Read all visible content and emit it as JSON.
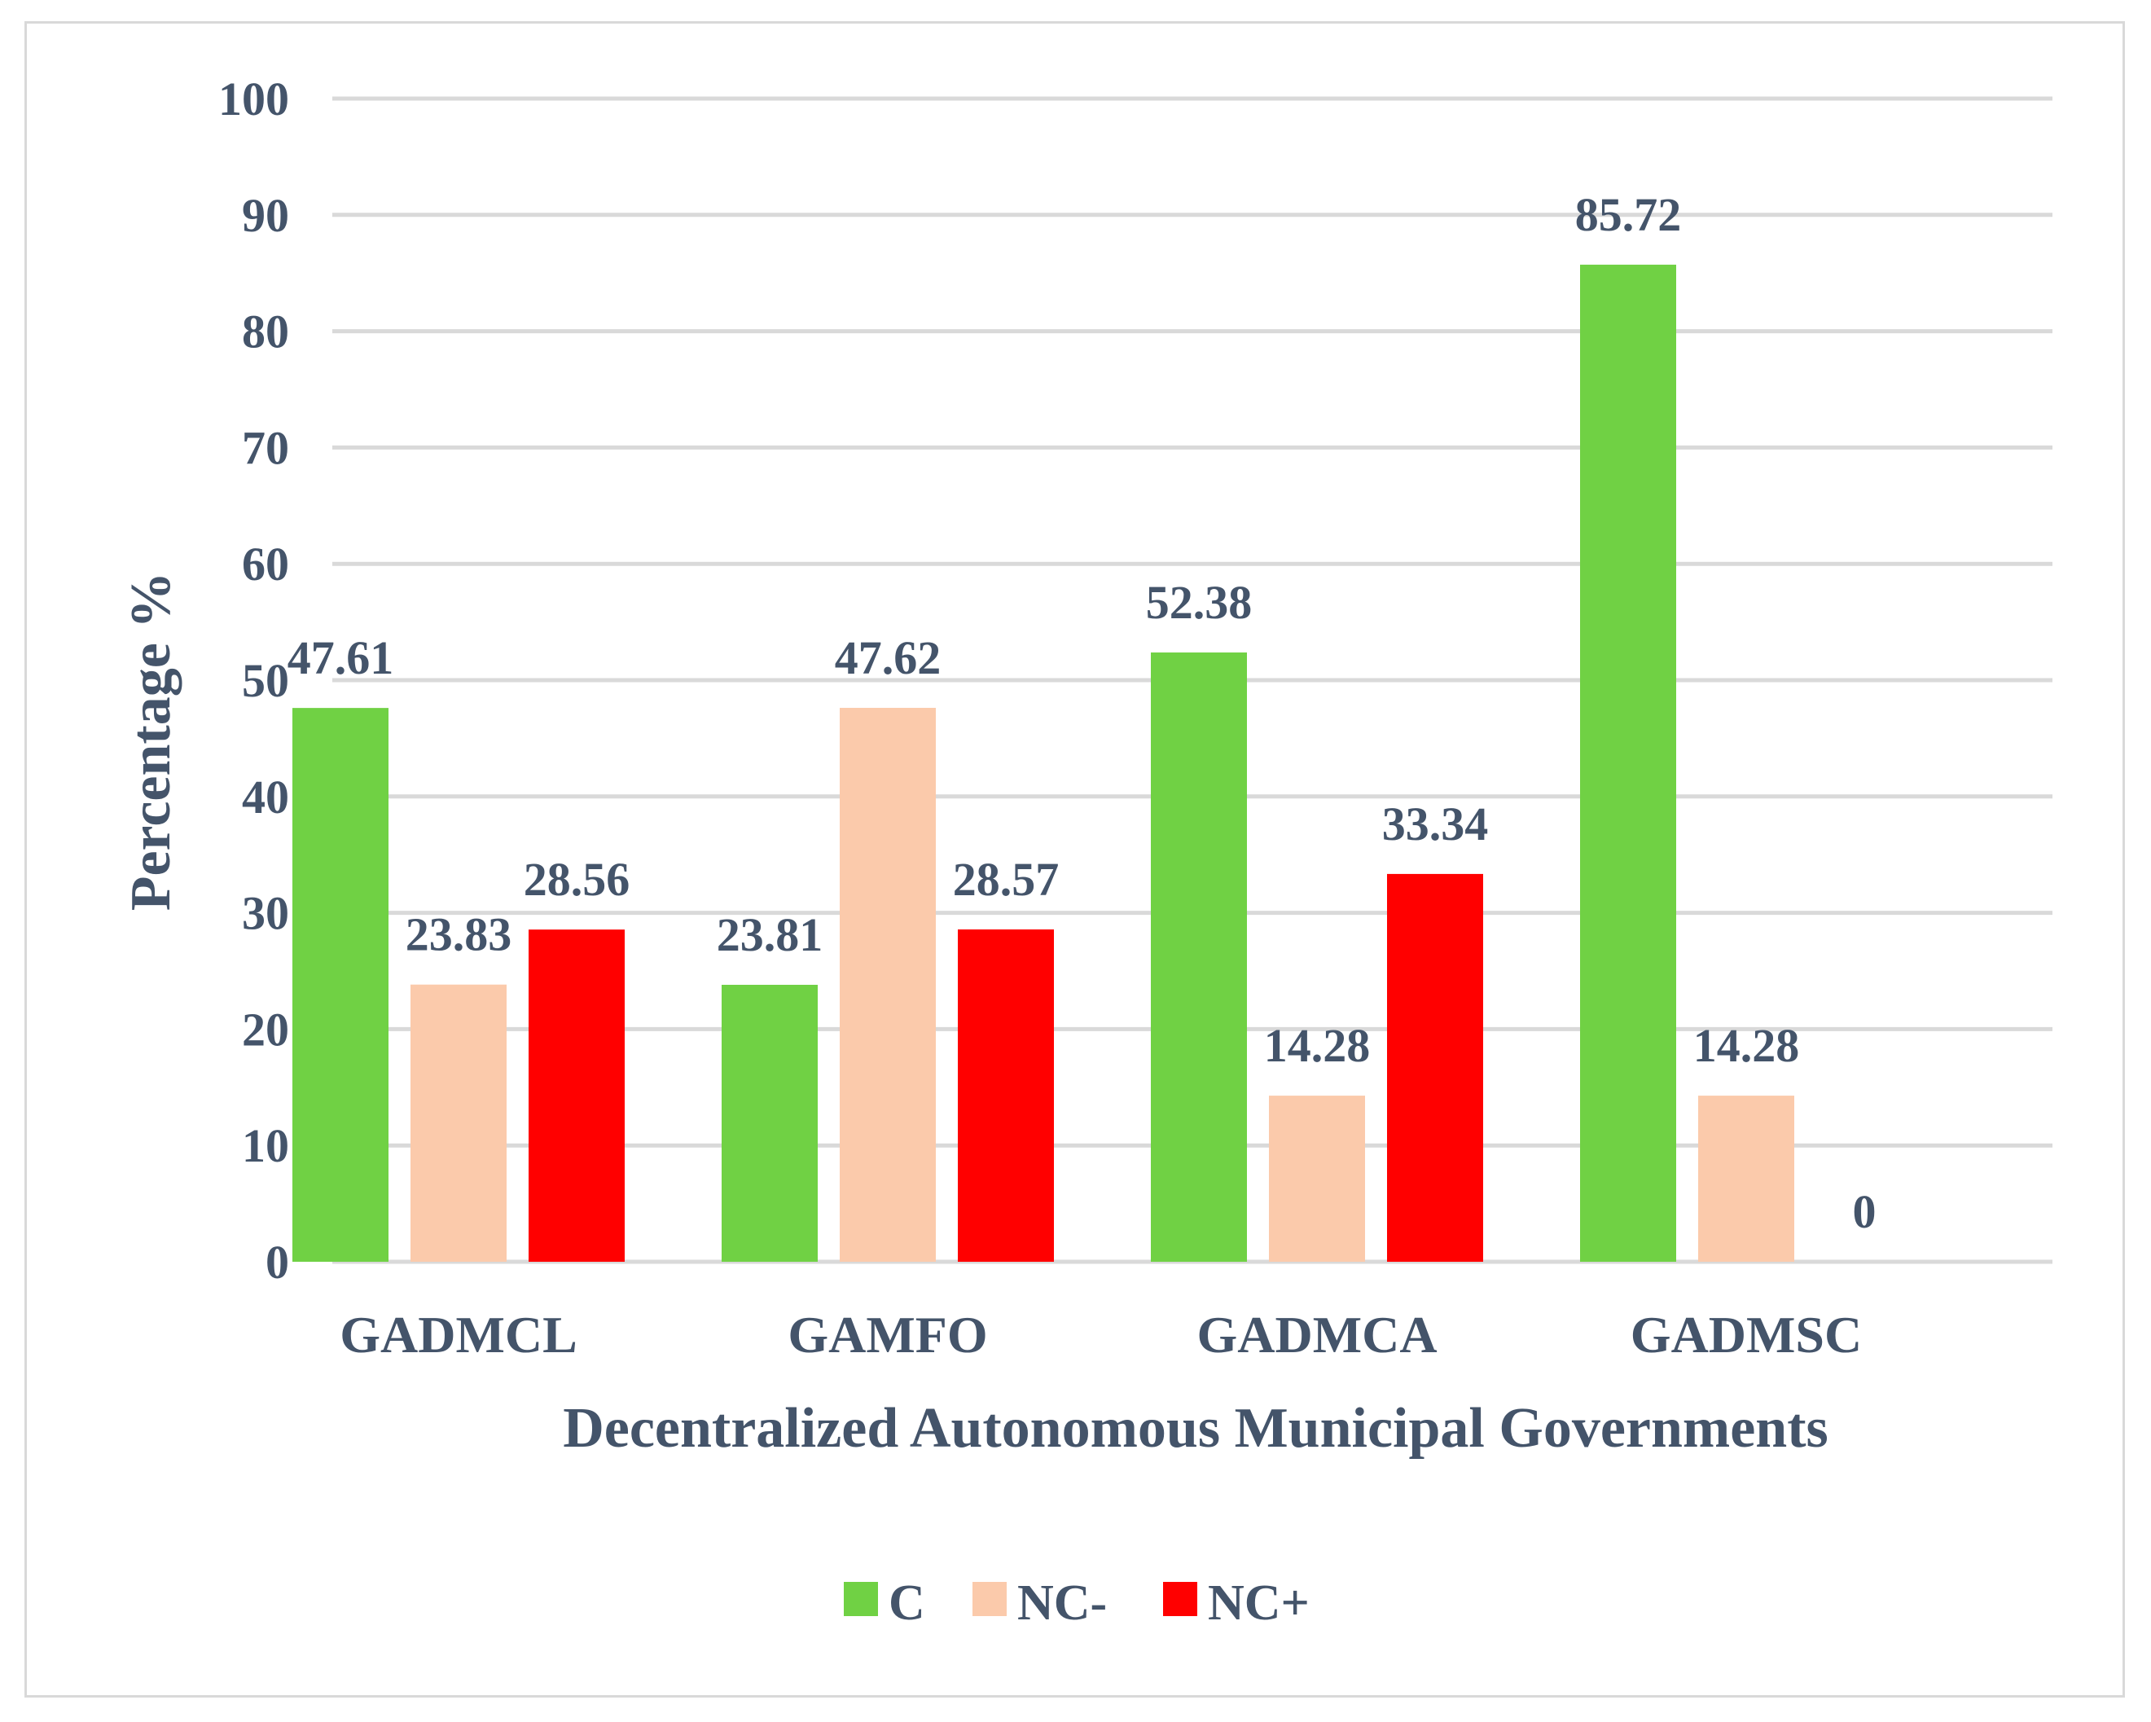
{
  "chart_data": {
    "type": "bar",
    "title": "",
    "xlabel": "Decentralized Autonomous Municipal Governments",
    "ylabel": "Percentage %",
    "ylim": [
      0,
      100
    ],
    "yticks": [
      0,
      10,
      20,
      30,
      40,
      50,
      60,
      70,
      80,
      90,
      100
    ],
    "grid": true,
    "legend_position": "bottom",
    "categories": [
      "GADMCL",
      "GAMFO",
      "GADMCA",
      "GADMSC"
    ],
    "series": [
      {
        "name": "C",
        "color": "#70d144",
        "values": [
          47.61,
          23.81,
          52.38,
          85.72
        ],
        "labels": [
          "47.61",
          "23.81",
          "52.38",
          "85.72"
        ]
      },
      {
        "name": "NC-",
        "color": "#fbcaab",
        "values": [
          23.83,
          47.62,
          14.28,
          14.28
        ],
        "labels": [
          "23.83",
          "47.62",
          "14.28",
          "14.28"
        ]
      },
      {
        "name": "NC+",
        "color": "#ff0000",
        "values": [
          28.56,
          28.57,
          33.34,
          0
        ],
        "labels": [
          "28.56",
          "28.57",
          "33.34",
          "0"
        ]
      }
    ],
    "colors": {
      "text": "#44546a",
      "grid": "#d9d9d9",
      "frame": "#d9d9d9"
    }
  }
}
